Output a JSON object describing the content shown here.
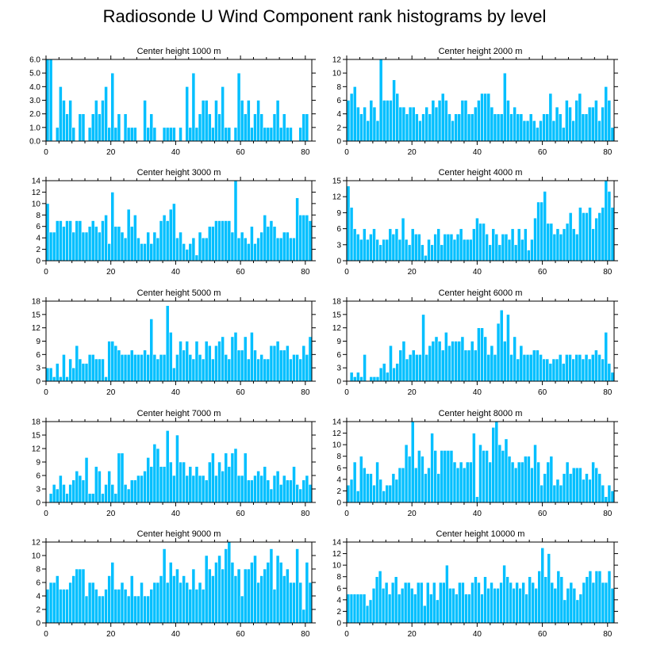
{
  "title": "Radiosonde U Wind Component rank histograms by level",
  "colors": {
    "bar": "#00BFFF",
    "bar_edge": "#ffffff",
    "axis": "#000000"
  },
  "chart_data": [
    {
      "type": "bar",
      "title": "Center height 1000 m",
      "ylim": [
        0,
        6
      ],
      "yticks": [
        "0.0",
        "1.0",
        "2.0",
        "3.0",
        "4.0",
        "5.0",
        "6.0"
      ],
      "xticks": [
        "0",
        "20",
        "40",
        "60",
        "80"
      ],
      "values": [
        6,
        6,
        0,
        1,
        4,
        3,
        2,
        3,
        1,
        0,
        2,
        2,
        0,
        1,
        2,
        3,
        2,
        3,
        4,
        1,
        5,
        1,
        2,
        0,
        2,
        1,
        1,
        1,
        0,
        0,
        3,
        1,
        2,
        1,
        0,
        0,
        1,
        1,
        1,
        1,
        0,
        1,
        0,
        4,
        1,
        5,
        1,
        2,
        3,
        3,
        2,
        1,
        3,
        2,
        4,
        1,
        1,
        0,
        1,
        5,
        3,
        2,
        3,
        1,
        2,
        3,
        2,
        1,
        1,
        1,
        2,
        3,
        1,
        2,
        1,
        1,
        0,
        0,
        1,
        2,
        2,
        0
      ]
    },
    {
      "type": "bar",
      "title": "Center height 2000 m",
      "ylim": [
        0,
        12
      ],
      "yticks": [
        "0",
        "2",
        "4",
        "6",
        "8",
        "10",
        "12"
      ],
      "xticks": [
        "0",
        "20",
        "40",
        "60",
        "80"
      ],
      "values": [
        6,
        7,
        8,
        5,
        4,
        5,
        3,
        6,
        5,
        3,
        12,
        6,
        6,
        6,
        9,
        7,
        5,
        5,
        4,
        5,
        5,
        4,
        3,
        4,
        5,
        4,
        6,
        5,
        6,
        7,
        6,
        4,
        3,
        4,
        4,
        6,
        6,
        4,
        4,
        5,
        6,
        7,
        7,
        7,
        5,
        4,
        4,
        4,
        10,
        6,
        4,
        5,
        4,
        4,
        3,
        3,
        4,
        3,
        2,
        3,
        4,
        4,
        7,
        3,
        5,
        4,
        2,
        6,
        5,
        3,
        6,
        7,
        4,
        4,
        5,
        5,
        6,
        3,
        5,
        8,
        6,
        2
      ]
    },
    {
      "type": "bar",
      "title": "Center height 3000 m",
      "ylim": [
        0,
        14
      ],
      "yticks": [
        "0",
        "2",
        "4",
        "6",
        "8",
        "10",
        "12",
        "14"
      ],
      "xticks": [
        "0",
        "20",
        "40",
        "60",
        "80"
      ],
      "values": [
        10,
        5,
        5,
        7,
        7,
        6,
        7,
        7,
        5,
        7,
        7,
        5,
        5,
        6,
        7,
        6,
        5,
        7,
        8,
        3,
        12,
        6,
        6,
        5,
        4,
        9,
        6,
        8,
        4,
        3,
        3,
        5,
        3,
        5,
        4,
        7,
        8,
        7,
        9,
        10,
        4,
        5,
        3,
        2,
        3,
        4,
        1,
        5,
        4,
        4,
        6,
        6,
        7,
        7,
        7,
        7,
        7,
        5,
        14,
        4,
        5,
        4,
        3,
        6,
        3,
        4,
        5,
        8,
        6,
        7,
        6,
        4,
        4,
        5,
        5,
        4,
        4,
        11,
        8,
        8,
        8,
        7
      ]
    },
    {
      "type": "bar",
      "title": "Center height 4000 m",
      "ylim": [
        0,
        15
      ],
      "yticks": [
        "0",
        "3",
        "6",
        "9",
        "12",
        "15"
      ],
      "xticks": [
        "0",
        "20",
        "40",
        "60",
        "80"
      ],
      "values": [
        14,
        10,
        6,
        5,
        4,
        6,
        4,
        5,
        6,
        4,
        3,
        4,
        4,
        6,
        5,
        6,
        4,
        8,
        4,
        3,
        6,
        5,
        5,
        3,
        1,
        4,
        3,
        5,
        6,
        3,
        5,
        5,
        5,
        4,
        5,
        6,
        4,
        4,
        4,
        6,
        8,
        7,
        7,
        5,
        3,
        6,
        5,
        3,
        5,
        5,
        4,
        6,
        3,
        6,
        4,
        6,
        2,
        4,
        8,
        11,
        11,
        13,
        7,
        7,
        5,
        6,
        5,
        6,
        7,
        9,
        6,
        5,
        10,
        9,
        9,
        10,
        6,
        8,
        9,
        10,
        15,
        13,
        10
      ]
    },
    {
      "type": "bar",
      "title": "Center height 5000 m",
      "ylim": [
        0,
        18
      ],
      "yticks": [
        "0",
        "3",
        "6",
        "9",
        "12",
        "15",
        "18"
      ],
      "xticks": [
        "0",
        "20",
        "40",
        "60",
        "80"
      ],
      "values": [
        3,
        3,
        1,
        4,
        1,
        6,
        1,
        5,
        3,
        8,
        5,
        4,
        4,
        6,
        6,
        5,
        5,
        5,
        1,
        9,
        9,
        8,
        7,
        6,
        6,
        6,
        7,
        6,
        6,
        6,
        7,
        6,
        14,
        6,
        5,
        6,
        6,
        17,
        11,
        3,
        6,
        9,
        7,
        9,
        6,
        5,
        9,
        6,
        5,
        9,
        8,
        5,
        8,
        9,
        10,
        6,
        5,
        10,
        11,
        7,
        7,
        10,
        5,
        11,
        7,
        5,
        6,
        5,
        5,
        8,
        8,
        9,
        7,
        7,
        8,
        5,
        6,
        6,
        5,
        8,
        6,
        10
      ]
    },
    {
      "type": "bar",
      "title": "Center height 6000 m",
      "ylim": [
        0,
        18
      ],
      "yticks": [
        "0",
        "3",
        "6",
        "9",
        "12",
        "15",
        "18"
      ],
      "xticks": [
        "0",
        "20",
        "40",
        "60",
        "80"
      ],
      "values": [
        0,
        2,
        1,
        2,
        1,
        6,
        0,
        1,
        1,
        1,
        3,
        4,
        2,
        8,
        3,
        4,
        7,
        9,
        5,
        6,
        7,
        6,
        6,
        15,
        6,
        8,
        9,
        10,
        9,
        7,
        11,
        8,
        9,
        9,
        9,
        10,
        7,
        7,
        9,
        7,
        12,
        12,
        10,
        6,
        8,
        6,
        13,
        16,
        9,
        15,
        6,
        10,
        5,
        8,
        6,
        6,
        6,
        7,
        7,
        6,
        5,
        5,
        4,
        5,
        5,
        6,
        4,
        6,
        6,
        5,
        6,
        6,
        5,
        6,
        5,
        6,
        7,
        6,
        5,
        11,
        4,
        2
      ]
    },
    {
      "type": "bar",
      "title": "Center height 7000 m",
      "ylim": [
        0,
        18
      ],
      "yticks": [
        "0",
        "3",
        "6",
        "9",
        "12",
        "15",
        "18"
      ],
      "xticks": [
        "0",
        "20",
        "40",
        "60",
        "80"
      ],
      "values": [
        0,
        2,
        4,
        3,
        6,
        4,
        2,
        4,
        5,
        7,
        6,
        5,
        10,
        2,
        2,
        8,
        7,
        2,
        4,
        7,
        4,
        2,
        11,
        11,
        4,
        3,
        5,
        5,
        6,
        6,
        7,
        10,
        8,
        13,
        12,
        8,
        8,
        16,
        9,
        6,
        15,
        9,
        9,
        6,
        8,
        6,
        8,
        6,
        6,
        5,
        9,
        11,
        6,
        9,
        7,
        11,
        8,
        11,
        12,
        6,
        6,
        11,
        5,
        5,
        6,
        7,
        6,
        8,
        5,
        3,
        6,
        7,
        4,
        6,
        5,
        5,
        8,
        4,
        3,
        5,
        6,
        4
      ]
    },
    {
      "type": "bar",
      "title": "Center height 8000 m",
      "ylim": [
        0,
        14
      ],
      "yticks": [
        "0",
        "2",
        "4",
        "6",
        "8",
        "10",
        "12",
        "14"
      ],
      "xticks": [
        "0",
        "20",
        "40",
        "60",
        "80"
      ],
      "values": [
        3,
        4,
        7,
        2,
        8,
        6,
        5,
        5,
        3,
        7,
        4,
        2,
        3,
        3,
        5,
        4,
        6,
        6,
        10,
        8,
        14,
        6,
        9,
        8,
        5,
        6,
        12,
        9,
        5,
        9,
        9,
        9,
        9,
        7,
        6,
        7,
        6,
        7,
        7,
        12,
        1,
        10,
        9,
        9,
        7,
        13,
        14,
        10,
        9,
        11,
        8,
        7,
        6,
        7,
        7,
        8,
        8,
        6,
        10,
        7,
        3,
        5,
        7,
        8,
        3,
        4,
        3,
        5,
        7,
        5,
        6,
        6,
        6,
        4,
        5,
        4,
        7,
        6,
        5,
        3,
        1,
        3,
        2
      ]
    },
    {
      "type": "bar",
      "title": "Center height 9000 m",
      "ylim": [
        0,
        12
      ],
      "yticks": [
        "0",
        "2",
        "4",
        "6",
        "8",
        "10",
        "12"
      ],
      "xticks": [
        "0",
        "20",
        "40",
        "60",
        "80"
      ],
      "values": [
        5,
        6,
        6,
        7,
        5,
        5,
        5,
        6,
        7,
        8,
        8,
        8,
        4,
        6,
        6,
        5,
        4,
        4,
        5,
        7,
        9,
        5,
        5,
        6,
        5,
        4,
        7,
        4,
        4,
        6,
        4,
        4,
        5,
        6,
        6,
        7,
        11,
        6,
        9,
        7,
        8,
        6,
        7,
        6,
        5,
        8,
        5,
        6,
        5,
        10,
        8,
        7,
        9,
        10,
        8,
        11,
        12,
        9,
        7,
        8,
        4,
        8,
        8,
        9,
        10,
        6,
        7,
        8,
        9,
        11,
        5,
        10,
        9,
        7,
        8,
        6,
        6,
        11,
        6,
        2,
        9,
        6
      ]
    },
    {
      "type": "bar",
      "title": "Center height 10000 m",
      "ylim": [
        0,
        14
      ],
      "yticks": [
        "0",
        "2",
        "4",
        "6",
        "8",
        "10",
        "12",
        "14"
      ],
      "xticks": [
        "0",
        "20",
        "40",
        "60",
        "80"
      ],
      "values": [
        5,
        5,
        5,
        5,
        5,
        5,
        3,
        4,
        6,
        8,
        9,
        6,
        7,
        5,
        7,
        8,
        5,
        6,
        7,
        7,
        6,
        5,
        7,
        7,
        3,
        7,
        5,
        7,
        4,
        7,
        7,
        10,
        6,
        6,
        5,
        7,
        7,
        5,
        5,
        7,
        8,
        7,
        5,
        8,
        6,
        7,
        6,
        6,
        7,
        10,
        8,
        7,
        6,
        7,
        6,
        7,
        5,
        8,
        7,
        6,
        9,
        13,
        8,
        12,
        7,
        6,
        9,
        8,
        4,
        6,
        7,
        6,
        4,
        5,
        7,
        8,
        9,
        7,
        9,
        9,
        7,
        7,
        9,
        6
      ]
    }
  ]
}
